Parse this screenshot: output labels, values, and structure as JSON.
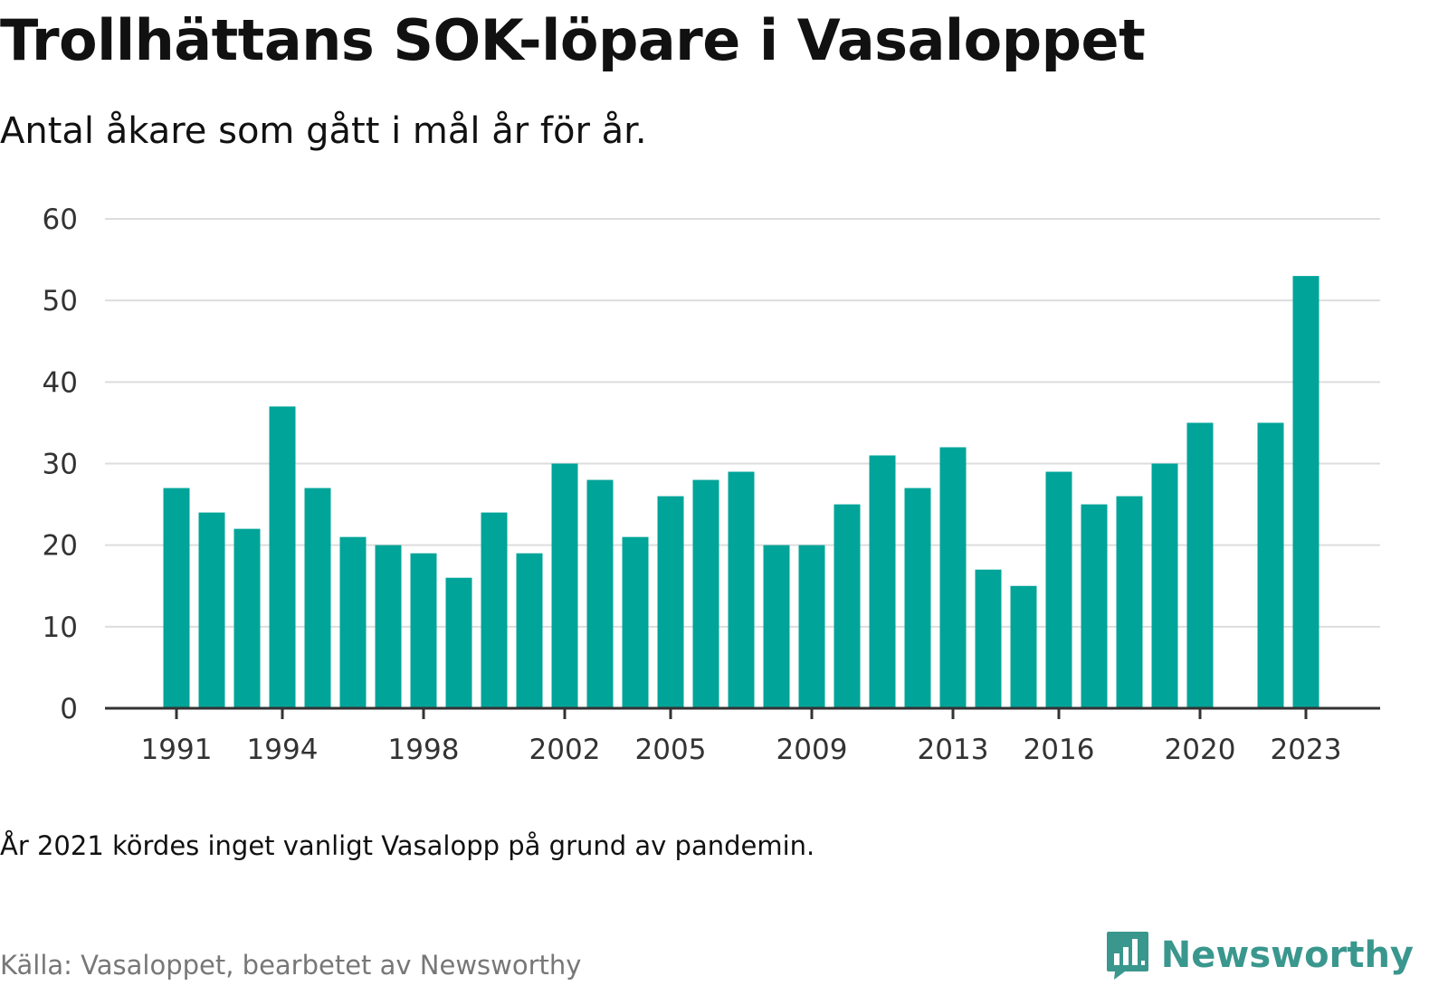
{
  "header": {
    "title": "Trollhättans SOK-löpare i Vasaloppet",
    "subtitle": "Antal åkare som gått i mål år för år."
  },
  "footer": {
    "note": "År 2021 kördes inget vanligt Vasalopp på grund av pandemin.",
    "source": "Källa: Vasaloppet, bearbetet av Newsworthy",
    "brand": "Newsworthy",
    "brand_icon": "bar-chart-speech-bubble-icon"
  },
  "colors": {
    "bar": "#00a499",
    "grid": "#dddddd",
    "axis": "#333333",
    "brand": "#3a978e"
  },
  "chart_data": {
    "type": "bar",
    "categories": [
      "1991",
      "1992",
      "1993",
      "1994",
      "1995",
      "1996",
      "1997",
      "1998",
      "1999",
      "2000",
      "2001",
      "2002",
      "2003",
      "2004",
      "2005",
      "2006",
      "2007",
      "2008",
      "2009",
      "2010",
      "2011",
      "2012",
      "2013",
      "2014",
      "2015",
      "2016",
      "2017",
      "2018",
      "2019",
      "2020",
      "2021",
      "2022",
      "2023"
    ],
    "values": [
      27,
      24,
      22,
      37,
      27,
      21,
      20,
      19,
      16,
      24,
      19,
      30,
      28,
      21,
      26,
      28,
      29,
      20,
      20,
      25,
      31,
      27,
      32,
      17,
      15,
      29,
      25,
      26,
      30,
      35,
      null,
      35,
      53
    ],
    "x_tick_labels": [
      "1991",
      "1994",
      "1998",
      "2002",
      "2005",
      "2009",
      "2013",
      "2016",
      "2020",
      "2023"
    ],
    "y_ticks": [
      "0",
      "10",
      "20",
      "30",
      "40",
      "50",
      "60"
    ],
    "ylim": [
      0,
      60
    ],
    "grid": true,
    "legend": "none"
  }
}
